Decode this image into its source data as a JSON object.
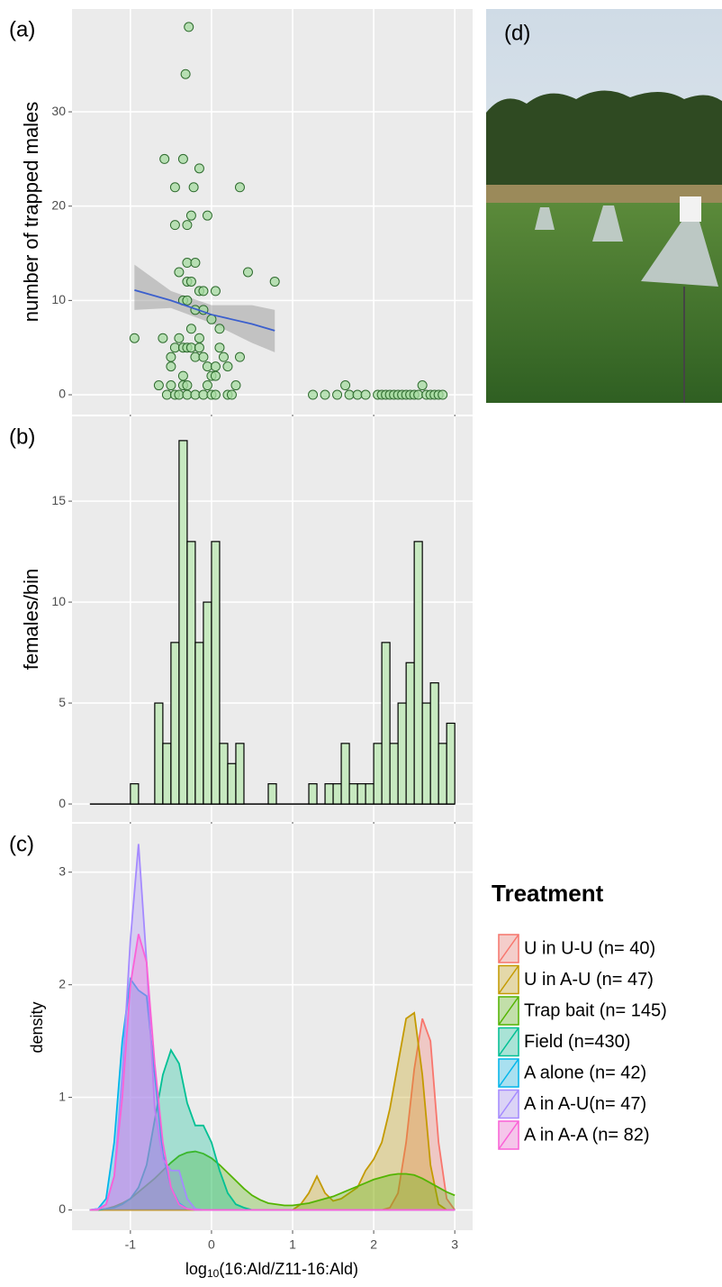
{
  "chart_data": [
    {
      "type": "scatter",
      "panel_label": "(a)",
      "y_label": "number of trapped males",
      "x": [
        -0.95,
        -0.58,
        -0.35,
        -0.28,
        -0.32,
        -0.15,
        -0.45,
        -0.22,
        0.35,
        -0.45,
        -0.3,
        -0.25,
        -0.05,
        -0.3,
        -0.2,
        -0.4,
        0.45,
        0.78,
        -0.3,
        -0.25,
        -0.15,
        -0.1,
        0.05,
        -0.35,
        -0.3,
        -0.2,
        -0.1,
        0,
        0.1,
        -0.25,
        -0.6,
        -0.4,
        -0.15,
        -0.45,
        -0.35,
        -0.3,
        -0.25,
        -0.15,
        0.1,
        -0.5,
        -0.2,
        -0.1,
        0.15,
        0.35,
        -0.5,
        -0.05,
        0.05,
        0.2,
        -0.35,
        0,
        0.05,
        -0.65,
        -0.5,
        -0.35,
        -0.3,
        -0.05,
        0.3,
        -0.55,
        -0.45,
        -0.4,
        -0.3,
        -0.2,
        -0.1,
        0,
        0.05,
        0.2,
        0.25,
        1.25,
        1.4,
        1.55,
        1.65,
        1.7,
        1.8,
        1.9,
        2.05,
        2.1,
        2.15,
        2.2,
        2.25,
        2.3,
        2.35,
        2.4,
        2.45,
        2.5,
        2.55,
        2.6,
        2.65,
        2.7,
        2.75,
        2.8,
        2.85
      ],
      "y": [
        6,
        25,
        25,
        39,
        34,
        24,
        22,
        22,
        22,
        18,
        18,
        19,
        19,
        14,
        14,
        13,
        13,
        12,
        12,
        12,
        11,
        11,
        11,
        10,
        10,
        9,
        9,
        8,
        7,
        7,
        6,
        6,
        6,
        5,
        5,
        5,
        5,
        5,
        5,
        4,
        4,
        4,
        4,
        4,
        3,
        3,
        3,
        3,
        2,
        2,
        2,
        1,
        1,
        1,
        1,
        1,
        1,
        0,
        0,
        0,
        0,
        0,
        0,
        0,
        0,
        0,
        0,
        0,
        0,
        0,
        1,
        0,
        0,
        0,
        0,
        0,
        0,
        0,
        0,
        0,
        0,
        0,
        0,
        0,
        0,
        1,
        0,
        0,
        0,
        0,
        0
      ],
      "color": "#a6dba0",
      "fit": {
        "x": [
          -0.95,
          -0.5,
          0,
          0.5,
          0.78
        ],
        "y": [
          11.1,
          10.0,
          8.5,
          7.5,
          6.8
        ],
        "lower": [
          9,
          9.2,
          7.6,
          5.5,
          4.5
        ],
        "upper": [
          13.8,
          11.0,
          9.5,
          9.5,
          9
        ],
        "color": "#3b5fcd"
      },
      "xlim": [
        -1.72,
        3.22
      ],
      "ylim": [
        -2.1,
        40.9
      ],
      "yticks": [
        0,
        10,
        20,
        30
      ]
    },
    {
      "type": "histogram",
      "panel_label": "(b)",
      "y_label": "females/bin",
      "bins": [
        -1.5,
        -1.4,
        -1.3,
        -1.2,
        -1.1,
        -1.0,
        -0.9,
        -0.8,
        -0.7,
        -0.6,
        -0.5,
        -0.4,
        -0.3,
        -0.2,
        -0.1,
        0,
        0.1,
        0.2,
        0.3,
        0.4,
        0.5,
        0.6,
        0.7,
        0.8,
        0.9,
        1.0,
        1.1,
        1.2,
        1.3,
        1.4,
        1.5,
        1.6,
        1.7,
        1.8,
        1.9,
        2.0,
        2.1,
        2.2,
        2.3,
        2.4,
        2.5,
        2.6,
        2.7,
        2.8,
        2.9,
        3.0
      ],
      "values": [
        0,
        0,
        0,
        0,
        0,
        1,
        0,
        0,
        5,
        3,
        8,
        18,
        13,
        8,
        10,
        13,
        3,
        2,
        3,
        0,
        0,
        0,
        1,
        0,
        0,
        0,
        0,
        1,
        0,
        1,
        1,
        3,
        1,
        1,
        1,
        3,
        8,
        3,
        5,
        7,
        13,
        5,
        6,
        3,
        4
      ],
      "color": "#c7e9c0",
      "xlim": [
        -1.72,
        3.22
      ],
      "ylim": [
        -0.89,
        19.2
      ],
      "yticks": [
        0,
        5,
        10,
        15
      ]
    },
    {
      "type": "density",
      "panel_label": "(c)",
      "y_label": "density",
      "x_label": {
        "base": "log",
        "subscript": "10",
        "rest": "(16:Ald/Z11-16:Ald)"
      },
      "x": [
        -1.5,
        -1.4,
        -1.3,
        -1.2,
        -1.1,
        -1.0,
        -0.9,
        -0.8,
        -0.7,
        -0.6,
        -0.5,
        -0.4,
        -0.3,
        -0.2,
        -0.1,
        0,
        0.1,
        0.2,
        0.3,
        0.4,
        0.5,
        0.6,
        0.7,
        0.8,
        0.9,
        1.0,
        1.1,
        1.2,
        1.3,
        1.4,
        1.5,
        1.6,
        1.7,
        1.8,
        1.9,
        2.0,
        2.1,
        2.2,
        2.3,
        2.4,
        2.5,
        2.6,
        2.7,
        2.8,
        2.9,
        3.0
      ],
      "legend_title": "Treatment",
      "series": [
        {
          "name": "U in U-U (n= 40)",
          "color": "#F8766D",
          "values": [
            0,
            0,
            0,
            0,
            0,
            0,
            0,
            0,
            0,
            0,
            0,
            0,
            0,
            0,
            0,
            0,
            0,
            0,
            0,
            0,
            0,
            0,
            0,
            0,
            0,
            0,
            0,
            0,
            0,
            0,
            0,
            0,
            0,
            0,
            0,
            0,
            0,
            0.02,
            0.15,
            0.6,
            1.25,
            1.7,
            1.5,
            0.6,
            0.1,
            0
          ]
        },
        {
          "name": "U in A-U (n= 47)",
          "color": "#C49A00",
          "values": [
            0,
            0,
            0,
            0,
            0,
            0,
            0,
            0,
            0,
            0,
            0,
            0,
            0,
            0,
            0,
            0,
            0,
            0,
            0,
            0,
            0,
            0,
            0,
            0,
            0,
            0,
            0.05,
            0.15,
            0.3,
            0.15,
            0.08,
            0.1,
            0.15,
            0.2,
            0.35,
            0.45,
            0.6,
            0.9,
            1.3,
            1.7,
            1.75,
            1.2,
            0.4,
            0.05,
            0,
            0
          ]
        },
        {
          "name": "Trap bait (n= 145)",
          "color": "#53B400",
          "values": [
            0,
            0,
            0.01,
            0.03,
            0.06,
            0.1,
            0.16,
            0.22,
            0.28,
            0.35,
            0.42,
            0.48,
            0.51,
            0.52,
            0.5,
            0.46,
            0.4,
            0.33,
            0.26,
            0.19,
            0.13,
            0.09,
            0.06,
            0.05,
            0.04,
            0.04,
            0.05,
            0.06,
            0.08,
            0.1,
            0.12,
            0.15,
            0.18,
            0.21,
            0.24,
            0.27,
            0.29,
            0.31,
            0.32,
            0.32,
            0.31,
            0.28,
            0.24,
            0.2,
            0.16,
            0.13
          ]
        },
        {
          "name": "Field (n=430)",
          "color": "#00C094",
          "values": [
            0,
            0,
            0.01,
            0.02,
            0.05,
            0.1,
            0.2,
            0.4,
            0.8,
            1.2,
            1.42,
            1.3,
            0.95,
            0.75,
            0.75,
            0.6,
            0.35,
            0.15,
            0.05,
            0.02,
            0,
            0,
            0,
            0,
            0,
            0,
            0,
            0,
            0,
            0,
            0,
            0,
            0,
            0,
            0,
            0,
            0,
            0,
            0,
            0,
            0,
            0,
            0,
            0,
            0,
            0
          ]
        },
        {
          "name": "A alone (n= 42)",
          "color": "#00B6EB",
          "values": [
            0,
            0.01,
            0.1,
            0.6,
            1.5,
            2.05,
            1.95,
            1.9,
            1.2,
            0.5,
            0.2,
            0.06,
            0.01,
            0,
            0,
            0,
            0,
            0,
            0,
            0,
            0,
            0,
            0,
            0,
            0,
            0,
            0,
            0,
            0,
            0,
            0,
            0,
            0,
            0,
            0,
            0,
            0,
            0,
            0,
            0,
            0,
            0,
            0,
            0,
            0,
            0
          ]
        },
        {
          "name": "A in A-U(n= 47)",
          "color": "#A58AFF",
          "values": [
            0,
            0.01,
            0.05,
            0.3,
            1.2,
            2.4,
            3.25,
            2.2,
            0.9,
            0.45,
            0.35,
            0.35,
            0.1,
            0.01,
            0,
            0,
            0,
            0,
            0,
            0,
            0,
            0,
            0,
            0,
            0,
            0,
            0,
            0,
            0,
            0,
            0,
            0,
            0,
            0,
            0,
            0,
            0,
            0,
            0,
            0,
            0,
            0,
            0,
            0,
            0,
            0
          ]
        },
        {
          "name": "A in A-A (n= 82)",
          "color": "#FB61D7",
          "values": [
            0,
            0,
            0.05,
            0.3,
            1.0,
            2.0,
            2.45,
            2.2,
            1.3,
            0.6,
            0.2,
            0.05,
            0.01,
            0,
            0,
            0,
            0,
            0,
            0,
            0,
            0,
            0,
            0,
            0,
            0,
            0,
            0,
            0,
            0,
            0,
            0,
            0,
            0,
            0,
            0,
            0,
            0,
            0,
            0,
            0,
            0,
            0,
            0,
            0,
            0,
            0
          ]
        }
      ],
      "xlim": [
        -1.72,
        3.22
      ],
      "ylim": [
        -0.18,
        3.43
      ],
      "xticks": [
        -1,
        0,
        1,
        2,
        3
      ],
      "yticks": [
        0,
        1,
        2,
        3
      ]
    }
  ],
  "photo": {
    "label": "(d)"
  }
}
